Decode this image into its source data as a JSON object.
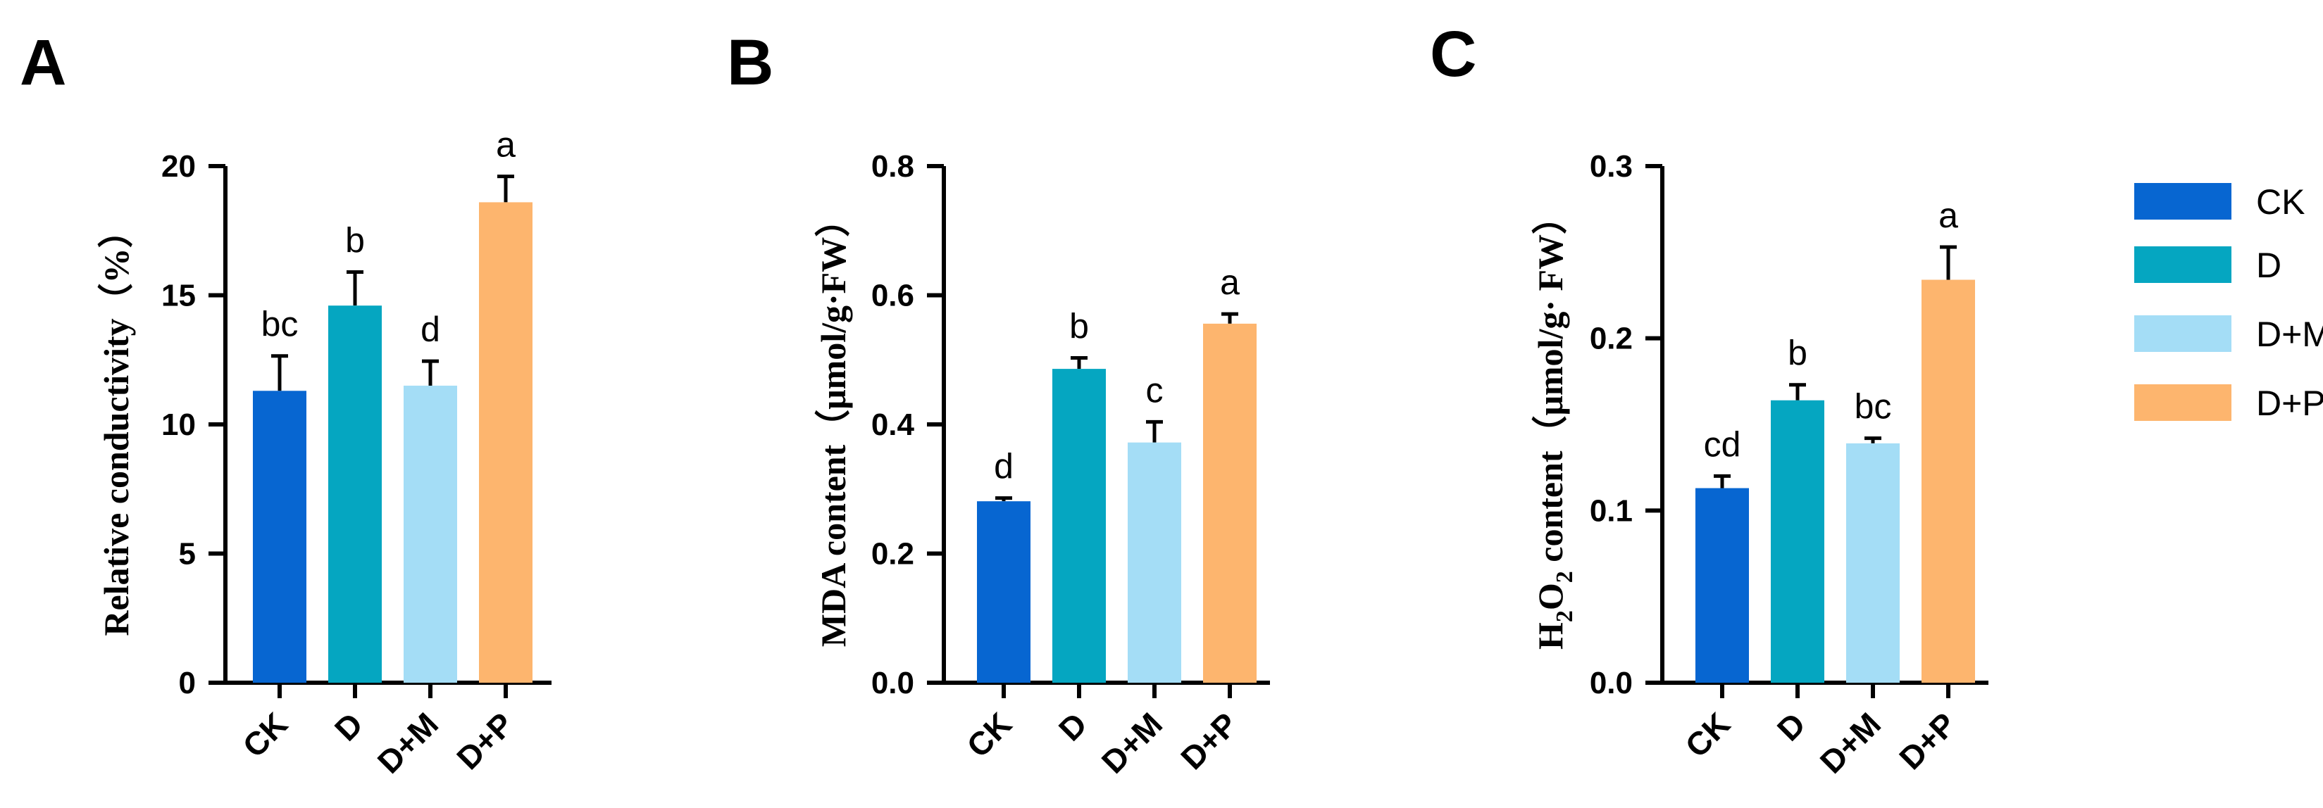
{
  "figure": {
    "legend": [
      {
        "label": "CK",
        "color": "#0766D1"
      },
      {
        "label": "D",
        "color": "#05A6C1"
      },
      {
        "label": "D+M",
        "color": "#A4DDF6"
      },
      {
        "label": "D+P",
        "color": "#FDB56E"
      }
    ]
  },
  "chart_data": [
    {
      "type": "bar",
      "panel": "A",
      "title": "",
      "xlabel": "",
      "ylabel": "Relative conductivity（%）",
      "categories": [
        "CK",
        "D",
        "D+M",
        "D+P"
      ],
      "values": [
        11.3,
        14.6,
        11.5,
        18.6
      ],
      "errors": [
        1.35,
        1.3,
        0.95,
        1.0
      ],
      "significance": [
        "bc",
        "b",
        "d",
        "a"
      ],
      "ylim": [
        0,
        20
      ],
      "yticks": [
        0,
        5,
        10,
        15,
        20
      ],
      "ytick_labels": [
        "0",
        "5",
        "10",
        "15",
        "20"
      ],
      "grid": false
    },
    {
      "type": "bar",
      "panel": "B",
      "title": "",
      "xlabel": "",
      "ylabel": "MDA content（μmol/g·FW）",
      "categories": [
        "CK",
        "D",
        "D+M",
        "D+P"
      ],
      "values": [
        0.281,
        0.486,
        0.372,
        0.556
      ],
      "errors": [
        0.005,
        0.017,
        0.032,
        0.015
      ],
      "significance": [
        "d",
        "b",
        "c",
        "a"
      ],
      "ylim": [
        0,
        0.8
      ],
      "yticks": [
        0,
        0.2,
        0.4,
        0.6,
        0.8
      ],
      "ytick_labels": [
        "0.0",
        "0.2",
        "0.4",
        "0.6",
        "0.8"
      ],
      "grid": false
    },
    {
      "type": "bar",
      "panel": "C",
      "title": "",
      "xlabel": "",
      "ylabel_parts": [
        "H",
        "2",
        "O",
        "2",
        " content（μmol/g· FW）"
      ],
      "categories": [
        "CK",
        "D",
        "D+M",
        "D+P"
      ],
      "values": [
        0.113,
        0.164,
        0.139,
        0.234
      ],
      "errors": [
        0.007,
        0.009,
        0.003,
        0.019
      ],
      "significance": [
        "cd",
        "b",
        "bc",
        "a"
      ],
      "ylim": [
        0,
        0.3
      ],
      "yticks": [
        0,
        0.1,
        0.2,
        0.3
      ],
      "ytick_labels": [
        "0.0",
        "0.1",
        "0.2",
        "0.3"
      ],
      "grid": false
    }
  ]
}
